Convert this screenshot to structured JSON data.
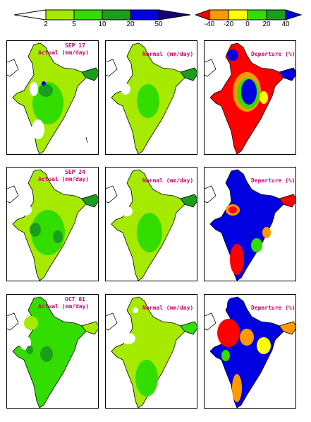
{
  "rainfall_scale": {
    "ticks": [
      "2",
      "5",
      "10",
      "20",
      "50"
    ],
    "colors": [
      "#ffffff",
      "#a5ea00",
      "#33dd00",
      "#1b9e1b",
      "#0000e0",
      "#1a007a"
    ]
  },
  "departure_scale": {
    "ticks": [
      "-40",
      "-20",
      "0",
      "20",
      "40"
    ],
    "colors": [
      "#ff0000",
      "#ff9900",
      "#ffff00",
      "#33dd00",
      "#1b9e1b",
      "#0000e0"
    ]
  },
  "rows": [
    {
      "date": "SEP 17",
      "actual_label": "Actual (mm/day)",
      "normal_label": "Normal (mm/day)",
      "departure_label": "Departure (%)"
    },
    {
      "date": "SEP 24",
      "actual_label": "Actual (mm/day)",
      "normal_label": "Normal (mm/day)",
      "departure_label": "Departure (%)"
    },
    {
      "date": "OCT 01",
      "actual_label": "Actual (mm/day)",
      "normal_label": "Normal (mm/day)",
      "departure_label": "Departure (%)"
    }
  ]
}
